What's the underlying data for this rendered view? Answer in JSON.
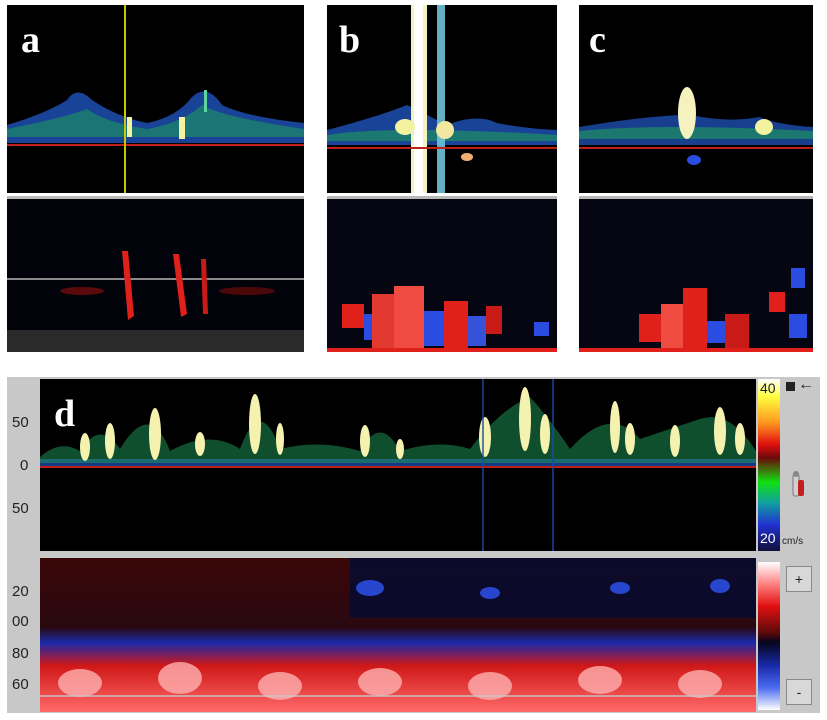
{
  "panels": {
    "a": {
      "label": "a"
    },
    "b": {
      "label": "b"
    },
    "c": {
      "label": "c"
    },
    "d": {
      "label": "d"
    }
  },
  "spectrum_axis": {
    "ticks": [
      "50",
      "0",
      "50"
    ]
  },
  "mode_axis": {
    "ticks": [
      "20",
      "00",
      "80",
      "60"
    ]
  },
  "velocity_scale": {
    "max": "40",
    "min": "20",
    "unit": "cm/s"
  },
  "mode_scale": {
    "plus": "+",
    "minus": "-"
  },
  "colors": {
    "background": "#000000",
    "baseline": "#c0201a",
    "cursor": "#c8c800",
    "frame": "#c8c8c8"
  },
  "icons": [
    "square-icon",
    "arrow-left-icon",
    "probe-icon"
  ]
}
